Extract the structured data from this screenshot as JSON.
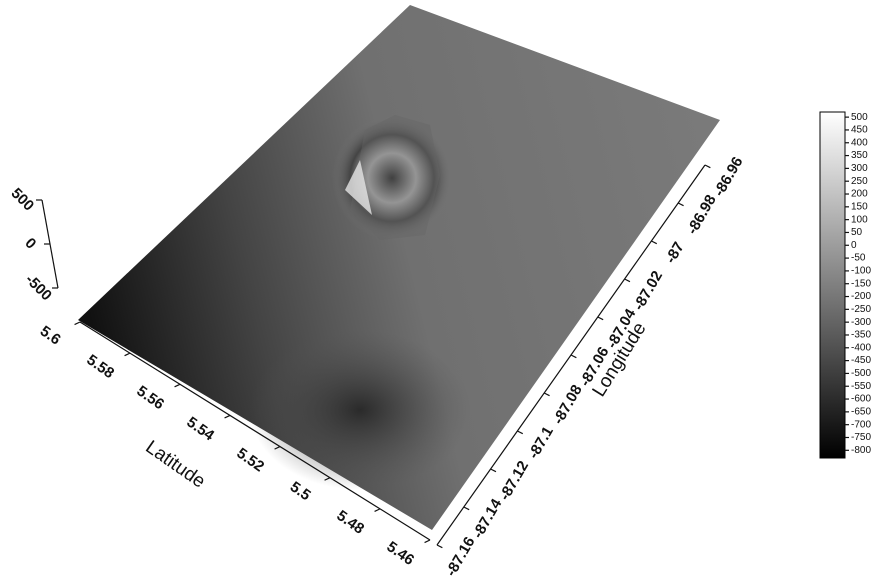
{
  "chart_data": {
    "type": "surface",
    "xlabel": "Latitude",
    "xlim": [
      5.46,
      5.6
    ],
    "xticks": [
      5.46,
      5.48,
      5.5,
      5.52,
      5.54,
      5.56,
      5.58,
      5.6
    ],
    "ylabel": "Longitude",
    "ylim": [
      -87.16,
      -86.96
    ],
    "yticks": [
      -87.16,
      -87.14,
      -87.12,
      -87.1,
      -87.08,
      -87.06,
      -87.04,
      -87.02,
      -87,
      -86.98,
      -86.96
    ],
    "zlim": [
      -500,
      500
    ],
    "zticks": [
      -500,
      0,
      500
    ],
    "colorbar": {
      "lim": [
        -830,
        520
      ],
      "ticks": [
        500,
        450,
        400,
        350,
        300,
        250,
        200,
        150,
        100,
        50,
        0,
        -50,
        -100,
        -150,
        -200,
        -250,
        -300,
        -350,
        -400,
        -450,
        -500,
        -550,
        -600,
        -650,
        -700,
        -750,
        -800
      ]
    }
  }
}
